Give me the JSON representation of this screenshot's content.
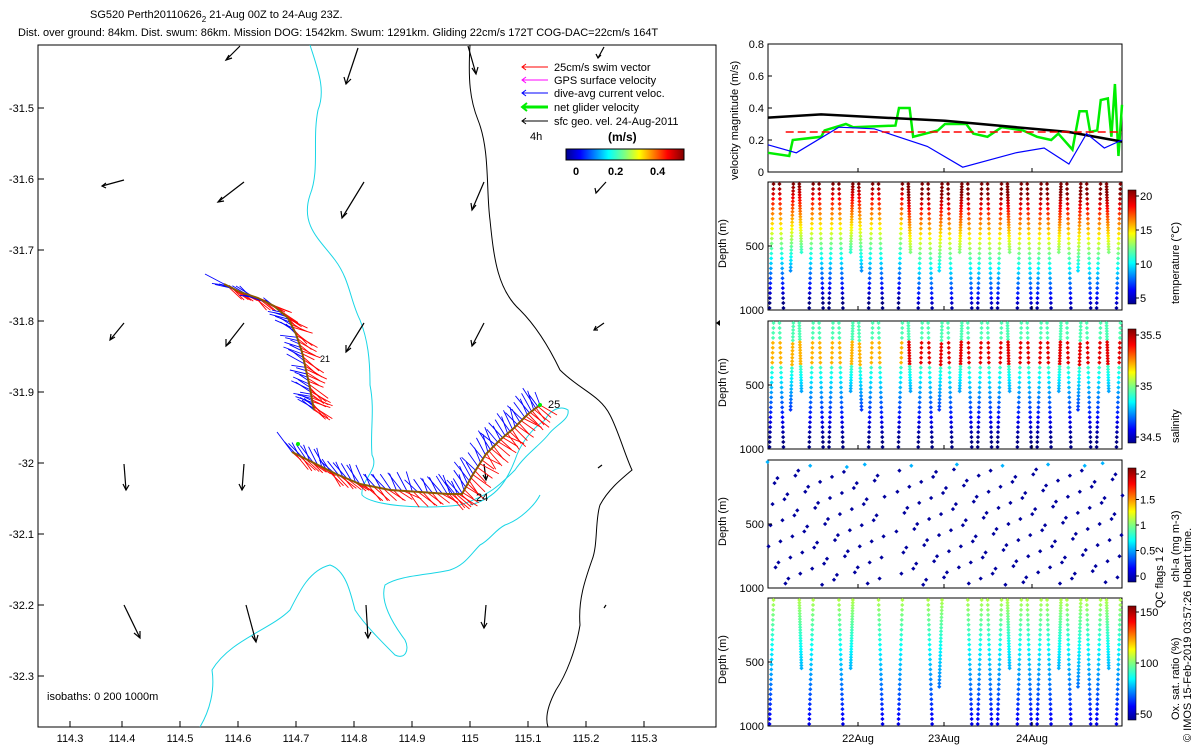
{
  "header": {
    "title_main": "SG520 Perth20110626",
    "title_sub": "2",
    "title_rest": " 21-Aug 00Z to 24-Aug 23Z.",
    "stats": "Dist. over ground: 84km. Dist. swum: 86km. Mission DOG: 1542km. Swum: 1291km. Gliding 22cm/s 172T COG-DAC=22cm/s 164T"
  },
  "map": {
    "x_ticks": [
      "114.3",
      "114.4",
      "114.5",
      "114.6",
      "114.7",
      "114.8",
      "114.9",
      "115",
      "115.1",
      "115.2",
      "115.3"
    ],
    "y_ticks": [
      "-31.5",
      "-31.6",
      "-31.7",
      "-31.8",
      "-31.9",
      "-32",
      "-32.1",
      "-32.2",
      "-32.3"
    ],
    "legend": [
      {
        "label": "25cm/s swim vector",
        "color": "#ff0000"
      },
      {
        "label": "GPS surface velocity",
        "color": "#ff00ff"
      },
      {
        "label": "dive-avg current veloc.",
        "color": "#0000ff"
      },
      {
        "label": "net glider velocity",
        "color": "#00ee00"
      },
      {
        "label": "sfc geo. vel. 24-Aug-2011",
        "color": "#000000"
      }
    ],
    "legend_4h": "4h",
    "colorbar_title": "(m/s)",
    "colorbar_ticks": [
      "0",
      "0.2",
      "0.4"
    ],
    "isobaths": "isobaths: 0   200  1000m",
    "day_labels": [
      "25",
      "24",
      "21"
    ]
  },
  "panels": {
    "velocity": {
      "ylabel": "velocity magnitude (m/s)",
      "ticks": [
        "0.8",
        "0.6",
        "0.4",
        "0.2",
        "0"
      ]
    },
    "temperature": {
      "ylabel": "Depth (m)",
      "cblabel": "temperature (°C)",
      "yticks": [
        "500",
        "1000"
      ],
      "cbticks": [
        "20",
        "15",
        "10",
        "5"
      ]
    },
    "salinity": {
      "ylabel": "Depth (m)",
      "cblabel": "salinity",
      "yticks": [
        "500",
        "1000"
      ],
      "cbticks": [
        "35.5",
        "35",
        "34.5"
      ]
    },
    "chla": {
      "ylabel": "Depth (m)",
      "cblabel": "chl-a (mg m-3)",
      "yticks": [
        "500",
        "1000"
      ],
      "cbticks": [
        "2",
        "1.5",
        "1",
        "0.5",
        "0"
      ]
    },
    "oxygen": {
      "ylabel": "Depth (m)",
      "cblabel": "Ox. sat. ratio (%)",
      "yticks": [
        "500",
        "1000"
      ],
      "cbticks": [
        "150",
        "100",
        "50"
      ]
    },
    "x_ticks": [
      "22Aug",
      "23Aug",
      "24Aug"
    ],
    "qc_note": "QC flags 1  2",
    "footer": "© IMOS 15-Feb-2019 03:57:26 Hobart time."
  },
  "chart_data": [
    {
      "type": "line",
      "title": "velocity magnitude (m/s)",
      "ylim": [
        0,
        0.8
      ],
      "series": [
        {
          "name": "sfc geo. vel.",
          "color": "#000000",
          "x": [
            0,
            0.15,
            0.5,
            0.85,
            1
          ],
          "values": [
            0.34,
            0.36,
            0.32,
            0.25,
            0.19
          ]
        },
        {
          "name": "dive-avg current",
          "color": "#0000ff",
          "x": [
            0,
            0.08,
            0.2,
            0.3,
            0.45,
            0.55,
            0.7,
            0.78,
            0.85,
            0.9,
            0.95,
            1
          ],
          "values": [
            0.17,
            0.12,
            0.28,
            0.27,
            0.16,
            0.03,
            0.12,
            0.15,
            0.05,
            0.24,
            0.15,
            0.2
          ]
        },
        {
          "name": "25cm/s reference",
          "color": "#ff0000",
          "x": [
            0.05,
            1
          ],
          "values": [
            0.25,
            0.25
          ]
        }
      ]
    },
    {
      "type": "scatter",
      "title": "temperature (°C)",
      "ylabel": "Depth (m)",
      "ylim": [
        0,
        1000
      ],
      "clim": [
        3,
        22
      ]
    },
    {
      "type": "scatter",
      "title": "salinity",
      "ylabel": "Depth (m)",
      "ylim": [
        0,
        1000
      ],
      "clim": [
        34.3,
        35.9
      ]
    },
    {
      "type": "scatter",
      "title": "chl-a (mg m-3)",
      "ylabel": "Depth (m)",
      "ylim": [
        0,
        1000
      ],
      "clim": [
        0,
        2
      ]
    },
    {
      "type": "scatter",
      "title": "Ox. sat. ratio (%)",
      "ylabel": "Depth (m)",
      "ylim": [
        0,
        1000
      ],
      "clim": [
        20,
        175
      ]
    }
  ]
}
